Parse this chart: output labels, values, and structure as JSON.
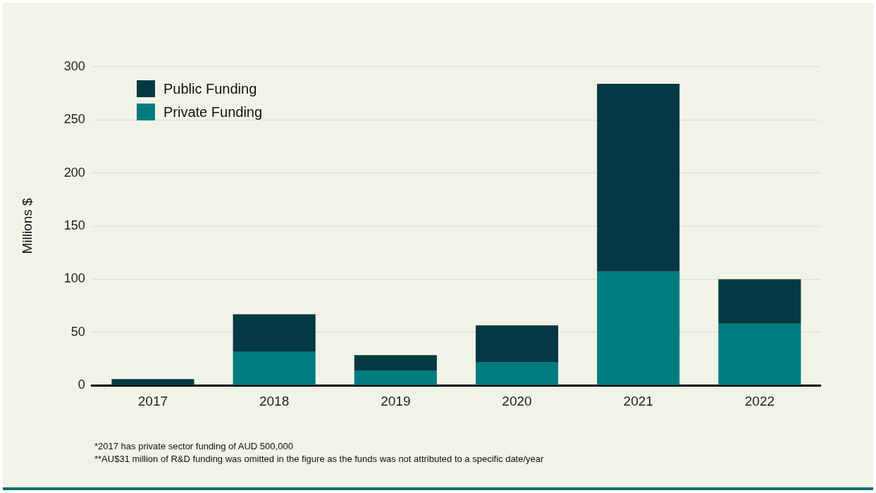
{
  "chart_data": {
    "type": "bar",
    "stacked": true,
    "ylabel": "Millions $",
    "categories": [
      "2017",
      "2018",
      "2019",
      "2020",
      "2021",
      "2022"
    ],
    "series": [
      {
        "name": "Private Funding",
        "color": "#007c80",
        "values": [
          0.5,
          32,
          14,
          22,
          107,
          58
        ]
      },
      {
        "name": "Public Funding",
        "color": "#043842",
        "values": [
          5.5,
          35,
          14.5,
          34.5,
          177,
          42
        ]
      }
    ],
    "ylim": [
      0,
      300
    ],
    "yticks": [
      0,
      50,
      100,
      150,
      200,
      250,
      300
    ],
    "grid": "y",
    "legend": "top left",
    "annotations": [
      "*2017 has private sector funding of AUD 500,000",
      "**AU$31 million of R&D funding was omitted in the figure as the funds was not attributed to a specific date/year"
    ]
  }
}
